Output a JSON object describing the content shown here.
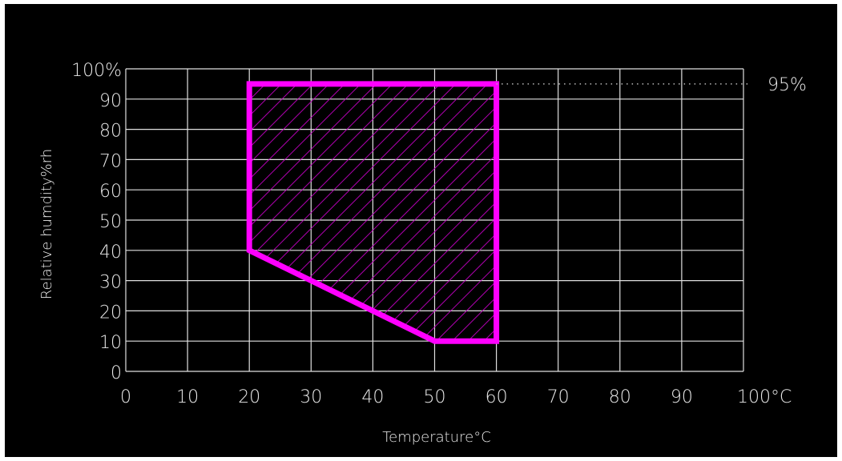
{
  "chart_data": {
    "type": "area",
    "xlabel": "Temperature°C",
    "ylabel": "Relative humdity%rh",
    "xlim": [
      0,
      100
    ],
    "ylim": [
      0,
      100
    ],
    "x_ticks": [
      "0",
      "10",
      "20",
      "30",
      "40",
      "50",
      "60",
      "70",
      "80",
      "90",
      "100°C"
    ],
    "y_ticks": [
      "0",
      "10",
      "20",
      "30",
      "40",
      "50",
      "60",
      "70",
      "80",
      "90",
      "100%"
    ],
    "grid": true,
    "region": {
      "x": [
        20,
        20,
        60,
        60,
        50,
        20
      ],
      "y": [
        40,
        95,
        95,
        10,
        10,
        40
      ],
      "color": "#ff00ff",
      "fill": "hatched"
    },
    "reference_line": {
      "y": 95,
      "label": "95%",
      "style": "dotted"
    }
  }
}
